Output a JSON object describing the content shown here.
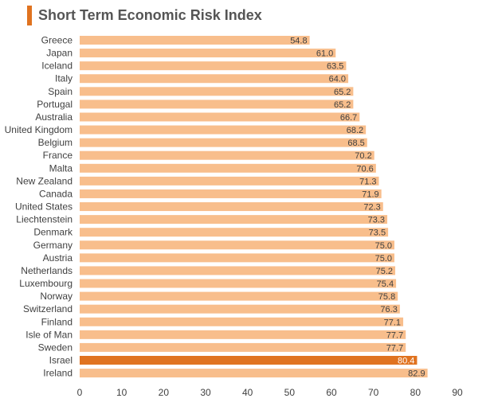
{
  "title": "Short Term Economic Risk Index",
  "colors": {
    "accent": "#E07320",
    "bar": "#F8BE8C",
    "highlight": "#E07320"
  },
  "chart_data": {
    "type": "bar",
    "orientation": "horizontal",
    "title": "Short Term Economic Risk Index",
    "categories": [
      "Greece",
      "Japan",
      "Iceland",
      "Italy",
      "Spain",
      "Portugal",
      "Australia",
      "United Kingdom",
      "Belgium",
      "France",
      "Malta",
      "New Zealand",
      "Canada",
      "United States",
      "Liechtenstein",
      "Denmark",
      "Germany",
      "Austria",
      "Netherlands",
      "Luxembourg",
      "Norway",
      "Switzerland",
      "Finland",
      "Isle of Man",
      "Sweden",
      "Israel",
      "Ireland"
    ],
    "values": [
      54.8,
      61.0,
      63.5,
      64.0,
      65.2,
      65.2,
      66.7,
      68.2,
      68.5,
      70.2,
      70.6,
      71.3,
      71.9,
      72.3,
      73.3,
      73.5,
      75.0,
      75.0,
      75.2,
      75.4,
      75.8,
      76.3,
      77.1,
      77.7,
      77.7,
      80.4,
      82.9
    ],
    "value_labels": [
      "54.8",
      "61.0",
      "63.5",
      "64.0",
      "65.2",
      "65.2",
      "66.7",
      "68.2",
      "68.5",
      "70.2",
      "70.6",
      "71.3",
      "71.9",
      "72.3",
      "73.3",
      "73.5",
      "75.0",
      "75.0",
      "75.2",
      "75.4",
      "75.8",
      "76.3",
      "77.1",
      "77.7",
      "77.7",
      "80.4",
      "82.9"
    ],
    "highlight": "Israel",
    "xlim": [
      0,
      90
    ],
    "xticks": [
      0,
      10,
      20,
      30,
      40,
      50,
      60,
      70,
      80,
      90
    ],
    "xtick_labels": [
      "0",
      "10",
      "20",
      "30",
      "40",
      "50",
      "60",
      "70",
      "80",
      "90"
    ],
    "xlabel": "",
    "ylabel": "",
    "grid": false,
    "legend": "none"
  }
}
